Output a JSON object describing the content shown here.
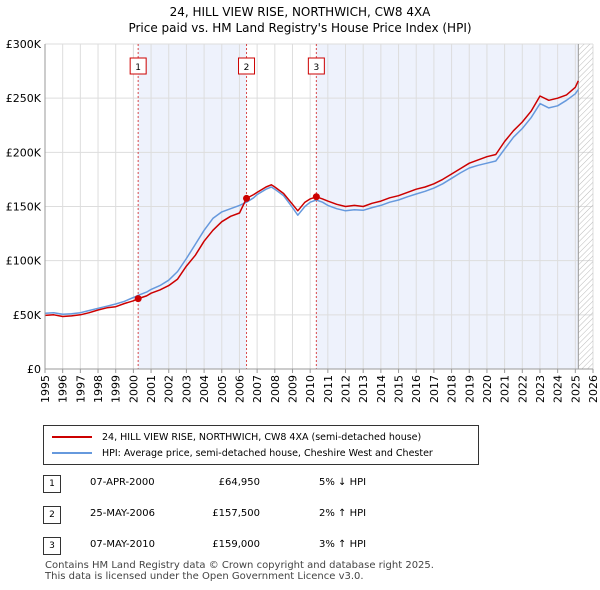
{
  "title_line1": "24, HILL VIEW RISE, NORTHWICH, CW8 4XA",
  "title_line2": "Price paid vs. HM Land Registry's House Price Index (HPI)",
  "chart_data": {
    "type": "line",
    "xlim": [
      1995,
      2026
    ],
    "ylim": [
      0,
      300000
    ],
    "y_ticks": [
      {
        "value": 0,
        "label": "£0"
      },
      {
        "value": 50000,
        "label": "£50K"
      },
      {
        "value": 100000,
        "label": "£100K"
      },
      {
        "value": 150000,
        "label": "£150K"
      },
      {
        "value": 200000,
        "label": "£200K"
      },
      {
        "value": 250000,
        "label": "£250K"
      },
      {
        "value": 300000,
        "label": "£300K"
      }
    ],
    "x_ticks": [
      "1995",
      "1996",
      "1997",
      "1998",
      "1999",
      "2000",
      "2001",
      "2002",
      "2003",
      "2004",
      "2005",
      "2006",
      "2007",
      "2008",
      "2009",
      "2010",
      "2011",
      "2012",
      "2013",
      "2014",
      "2015",
      "2016",
      "2017",
      "2018",
      "2019",
      "2020",
      "2021",
      "2022",
      "2023",
      "2024",
      "2025",
      "2026"
    ],
    "grid": true,
    "highlight_bands": [
      {
        "from": 2000.27,
        "to": 2006.4
      },
      {
        "from": 2010.35,
        "to": 2025.17
      }
    ],
    "hatched_from": 2025.17,
    "series": [
      {
        "name": "24, HILL VIEW RISE, NORTHWICH, CW8 4XA (semi-detached house)",
        "color": "#cc0000",
        "points": [
          [
            1995.0,
            49500
          ],
          [
            1995.5,
            50000
          ],
          [
            1996.0,
            48500
          ],
          [
            1996.5,
            49000
          ],
          [
            1997.0,
            50000
          ],
          [
            1997.5,
            52000
          ],
          [
            1998.0,
            54500
          ],
          [
            1998.5,
            56500
          ],
          [
            1999.0,
            57500
          ],
          [
            1999.5,
            60500
          ],
          [
            2000.0,
            63000
          ],
          [
            2000.27,
            64950
          ],
          [
            2000.75,
            67500
          ],
          [
            2001.0,
            70000
          ],
          [
            2001.5,
            73000
          ],
          [
            2002.0,
            77000
          ],
          [
            2002.5,
            83000
          ],
          [
            2003.0,
            95000
          ],
          [
            2003.5,
            105000
          ],
          [
            2004.0,
            118000
          ],
          [
            2004.5,
            128000
          ],
          [
            2005.0,
            136000
          ],
          [
            2005.5,
            141000
          ],
          [
            2006.0,
            144000
          ],
          [
            2006.4,
            157500
          ],
          [
            2006.8,
            161000
          ],
          [
            2007.0,
            163000
          ],
          [
            2007.5,
            168000
          ],
          [
            2007.8,
            170000
          ],
          [
            2008.0,
            168000
          ],
          [
            2008.5,
            162000
          ],
          [
            2009.0,
            152000
          ],
          [
            2009.3,
            146000
          ],
          [
            2009.7,
            154000
          ],
          [
            2010.0,
            157000
          ],
          [
            2010.35,
            159000
          ],
          [
            2010.7,
            157000
          ],
          [
            2011.0,
            155000
          ],
          [
            2011.5,
            152000
          ],
          [
            2012.0,
            150000
          ],
          [
            2012.5,
            151000
          ],
          [
            2013.0,
            150000
          ],
          [
            2013.5,
            153000
          ],
          [
            2014.0,
            155000
          ],
          [
            2014.5,
            158000
          ],
          [
            2015.0,
            160000
          ],
          [
            2015.5,
            163000
          ],
          [
            2016.0,
            166000
          ],
          [
            2016.5,
            168000
          ],
          [
            2017.0,
            171000
          ],
          [
            2017.5,
            175000
          ],
          [
            2018.0,
            180000
          ],
          [
            2018.5,
            185000
          ],
          [
            2019.0,
            190000
          ],
          [
            2019.5,
            193000
          ],
          [
            2020.0,
            196000
          ],
          [
            2020.5,
            198000
          ],
          [
            2021.0,
            210000
          ],
          [
            2021.5,
            220000
          ],
          [
            2022.0,
            228000
          ],
          [
            2022.5,
            238000
          ],
          [
            2023.0,
            252000
          ],
          [
            2023.5,
            248000
          ],
          [
            2024.0,
            250000
          ],
          [
            2024.5,
            253000
          ],
          [
            2025.0,
            260000
          ],
          [
            2025.17,
            266000
          ]
        ]
      },
      {
        "name": "HPI: Average price, semi-detached house, Cheshire West and Chester",
        "color": "#6699dd",
        "points": [
          [
            1995.0,
            51500
          ],
          [
            1995.5,
            52000
          ],
          [
            1996.0,
            50500
          ],
          [
            1996.5,
            51000
          ],
          [
            1997.0,
            52000
          ],
          [
            1997.5,
            54000
          ],
          [
            1998.0,
            56000
          ],
          [
            1998.5,
            58000
          ],
          [
            1999.0,
            60000
          ],
          [
            1999.5,
            62500
          ],
          [
            2000.0,
            66000
          ],
          [
            2000.27,
            68000
          ],
          [
            2000.75,
            71000
          ],
          [
            2001.0,
            73500
          ],
          [
            2001.5,
            77000
          ],
          [
            2002.0,
            82000
          ],
          [
            2002.5,
            90000
          ],
          [
            2003.0,
            102000
          ],
          [
            2003.5,
            115000
          ],
          [
            2004.0,
            128000
          ],
          [
            2004.5,
            139000
          ],
          [
            2005.0,
            145000
          ],
          [
            2005.5,
            148000
          ],
          [
            2006.0,
            151000
          ],
          [
            2006.4,
            154000
          ],
          [
            2006.8,
            158000
          ],
          [
            2007.0,
            161000
          ],
          [
            2007.5,
            166000
          ],
          [
            2007.8,
            168000
          ],
          [
            2008.0,
            166000
          ],
          [
            2008.5,
            160000
          ],
          [
            2009.0,
            149000
          ],
          [
            2009.3,
            142000
          ],
          [
            2009.7,
            150000
          ],
          [
            2010.0,
            154000
          ],
          [
            2010.35,
            156000
          ],
          [
            2010.7,
            154000
          ],
          [
            2011.0,
            151000
          ],
          [
            2011.5,
            148000
          ],
          [
            2012.0,
            146000
          ],
          [
            2012.5,
            147000
          ],
          [
            2013.0,
            146500
          ],
          [
            2013.5,
            149000
          ],
          [
            2014.0,
            151000
          ],
          [
            2014.5,
            154000
          ],
          [
            2015.0,
            156000
          ],
          [
            2015.5,
            159000
          ],
          [
            2016.0,
            161500
          ],
          [
            2016.5,
            164000
          ],
          [
            2017.0,
            167000
          ],
          [
            2017.5,
            171000
          ],
          [
            2018.0,
            176000
          ],
          [
            2018.5,
            181000
          ],
          [
            2019.0,
            185500
          ],
          [
            2019.5,
            188000
          ],
          [
            2020.0,
            190000
          ],
          [
            2020.5,
            192000
          ],
          [
            2021.0,
            203000
          ],
          [
            2021.5,
            214000
          ],
          [
            2022.0,
            222000
          ],
          [
            2022.5,
            232000
          ],
          [
            2023.0,
            245000
          ],
          [
            2023.5,
            241000
          ],
          [
            2024.0,
            243000
          ],
          [
            2024.5,
            248000
          ],
          [
            2025.0,
            254000
          ],
          [
            2025.17,
            258000
          ]
        ]
      }
    ],
    "sales": [
      {
        "marker": "1",
        "x": 2000.27,
        "price": 64950
      },
      {
        "marker": "2",
        "x": 2006.4,
        "price": 157500
      },
      {
        "marker": "3",
        "x": 2010.35,
        "price": 159000
      }
    ]
  },
  "legend": {
    "property_label": "24, HILL VIEW RISE, NORTHWICH, CW8 4XA (semi-detached house)",
    "hpi_label": "HPI: Average price, semi-detached house, Cheshire West and Chester"
  },
  "colors": {
    "property": "#cc0000",
    "hpi": "#6699dd",
    "band": "#eef2fc"
  },
  "sales_table": [
    {
      "num": "1",
      "date": "07-APR-2000",
      "price": "£64,950",
      "hpi": "5% ↓ HPI"
    },
    {
      "num": "2",
      "date": "25-MAY-2006",
      "price": "£157,500",
      "hpi": "2% ↑ HPI"
    },
    {
      "num": "3",
      "date": "07-MAY-2010",
      "price": "£159,000",
      "hpi": "3% ↑ HPI"
    }
  ],
  "footer": {
    "line1": "Contains HM Land Registry data © Crown copyright and database right 2025.",
    "line2": "This data is licensed under the Open Government Licence v3.0."
  }
}
